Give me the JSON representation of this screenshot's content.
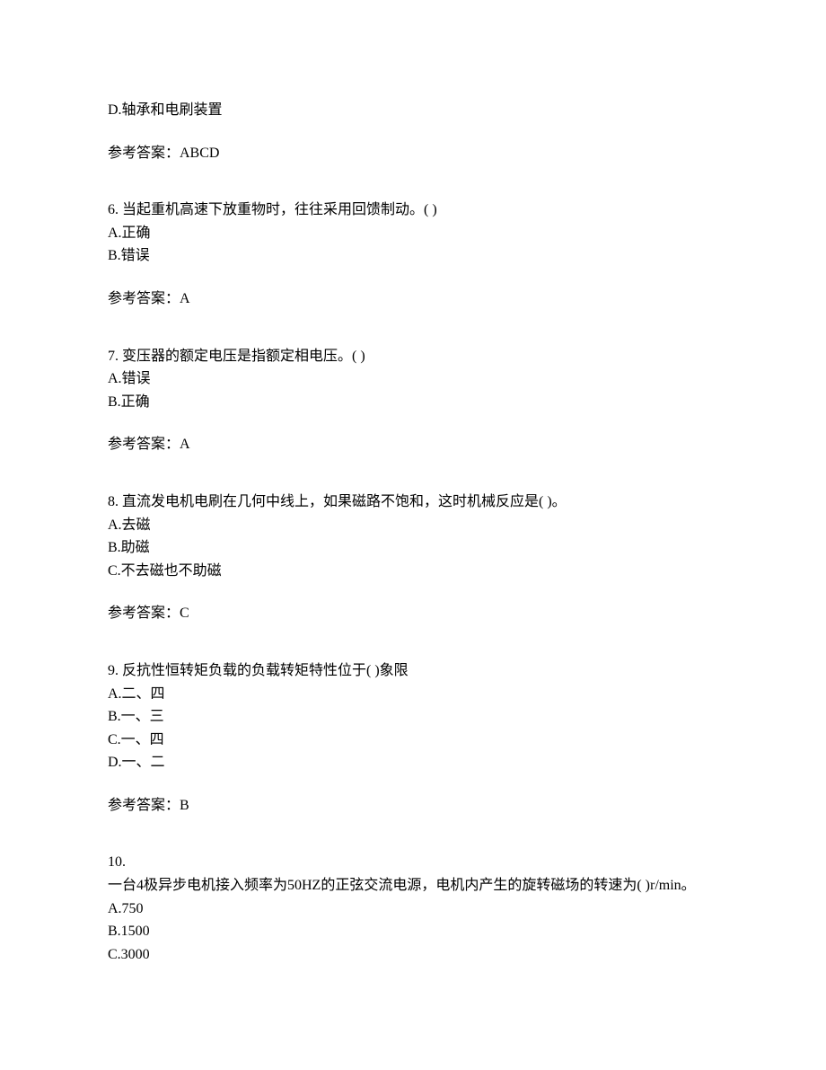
{
  "background_color": "#ffffff",
  "text_color": "#000000",
  "font_size": 16,
  "font_family": "SimSun",
  "continuation": {
    "option_d": "D.轴承和电刷装置",
    "answer_label": "参考答案：ABCD"
  },
  "q6": {
    "stem": "6. 当起重机高速下放重物时，往往采用回馈制动。(  )",
    "option_a": "A.正确",
    "option_b": "B.错误",
    "answer_label": "参考答案：A"
  },
  "q7": {
    "stem": "7. 变压器的额定电压是指额定相电压。(  )",
    "option_a": "A.错误",
    "option_b": "B.正确",
    "answer_label": "参考答案：A"
  },
  "q8": {
    "stem": "8. 直流发电机电刷在几何中线上，如果磁路不饱和，这时机械反应是(  )。",
    "option_a": "A.去磁",
    "option_b": "B.助磁",
    "option_c": "C.不去磁也不助磁",
    "answer_label": "参考答案：C"
  },
  "q9": {
    "stem": "9. 反抗性恒转矩负载的负载转矩特性位于(  )象限",
    "option_a": "A.二、四",
    "option_b": "B.一、三",
    "option_c": "C.一、四",
    "option_d": "D.一、二",
    "answer_label": "参考答案：B"
  },
  "q10": {
    "number": "10.",
    "stem": "一台4极异步电机接入频率为50HZ的正弦交流电源，电机内产生的旋转磁场的转速为(  )r/min。",
    "option_a": "A.750",
    "option_b": "B.1500",
    "option_c": "C.3000"
  }
}
